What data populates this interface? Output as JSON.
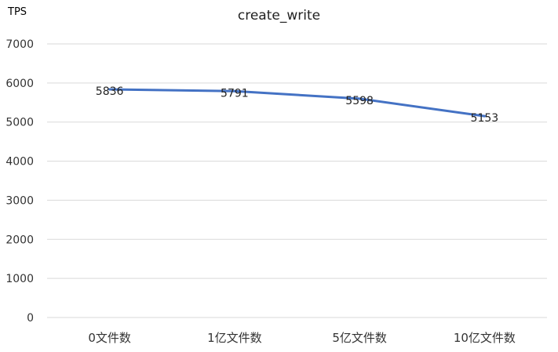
{
  "chart_data": {
    "type": "line",
    "title": "create_write",
    "xlabel": "",
    "ylabel": "TPS",
    "categories": [
      "0文件数",
      "1亿文件数",
      "5亿文件数",
      "10亿文件数"
    ],
    "series": [
      {
        "values": [
          5836,
          5791,
          5598,
          5153
        ],
        "color": "#4472C4"
      }
    ],
    "ylim": [
      0,
      7000
    ],
    "yticks": [
      0,
      1000,
      2000,
      3000,
      4000,
      5000,
      6000,
      7000
    ],
    "grid": true,
    "data_labels": true,
    "gridline_color": "#d9d9d9"
  }
}
